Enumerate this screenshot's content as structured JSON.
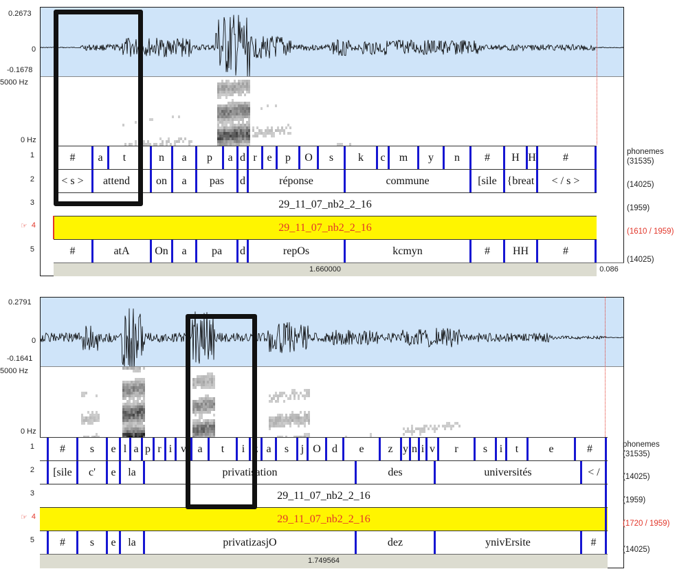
{
  "editors": [
    {
      "wave": {
        "ymax": "0.2673",
        "zero": "0",
        "ymin": "-0.1678"
      },
      "spec": {
        "fmax": "5000 Hz",
        "fmin": "0 Hz"
      },
      "tier_numbers": [
        "1",
        "2",
        "3",
        "4",
        "5"
      ],
      "selected_tier_marker": "☞",
      "right_labels": [
        "phonemes\n(31535)",
        "(14025)",
        "(1959)",
        "(1610 / 1959)",
        "(14025)"
      ],
      "tier1": [
        "#",
        "a",
        "t",
        "",
        "n",
        "a",
        "p",
        "a",
        "d",
        "r",
        "e",
        "p",
        "O",
        "s",
        "k",
        "c",
        "m",
        "y",
        "n",
        "#",
        "H",
        "H",
        "#"
      ],
      "tier2": [
        "< s >",
        "attend",
        "on",
        "a",
        "pas",
        "d",
        "réponse",
        "commune",
        "[sile",
        "{breat",
        "< / s >"
      ],
      "tier3": "29_11_07_nb2_2_16",
      "tier4": "29_11_07_nb2_2_16",
      "tier5": [
        "#",
        "atA",
        "On",
        "a",
        "pa",
        "d",
        "repOs",
        "kcmyn",
        "#",
        "HH",
        "#"
      ],
      "duration": "1.660000",
      "rest_duration": "0.086"
    },
    {
      "wave": {
        "ymax": "0.2791",
        "zero": "0",
        "ymin": "-0.1641"
      },
      "spec": {
        "fmax": "5000 Hz",
        "fmin": "0 Hz"
      },
      "tier_numbers": [
        "1",
        "2",
        "3",
        "4",
        "5"
      ],
      "selected_tier_marker": "☞",
      "right_labels": [
        "phonemes\n(31535)",
        "(14025)",
        "(1959)",
        "(1720 / 1959)",
        "(14025)"
      ],
      "tier1": [
        "#",
        "s",
        "e",
        "l",
        "a",
        "p",
        "r",
        "i",
        "v",
        "a",
        "t",
        "i",
        "z",
        "a",
        "s",
        "j",
        "O",
        "d",
        "e",
        "z",
        "y",
        "n",
        "i",
        "v",
        "r",
        "s",
        "i",
        "t",
        "e",
        "#"
      ],
      "tier2": [
        "[sile",
        "c'",
        "e",
        "la",
        "privatisation",
        "des",
        "universités",
        "< /"
      ],
      "tier3": "29_11_07_nb2_2_16",
      "tier4": "29_11_07_nb2_2_16",
      "tier5": [
        "#",
        "s",
        "e",
        "la",
        "privatizasjO",
        "dez",
        "ynivErsite",
        "#"
      ],
      "duration": "1.749564"
    }
  ],
  "colors": {
    "boundary": "#1616d2",
    "selected_tier": "#fff500",
    "selection_text": "#e2362a",
    "waveform_bg": "#cfe4f9",
    "highlight_box": "#111111"
  }
}
